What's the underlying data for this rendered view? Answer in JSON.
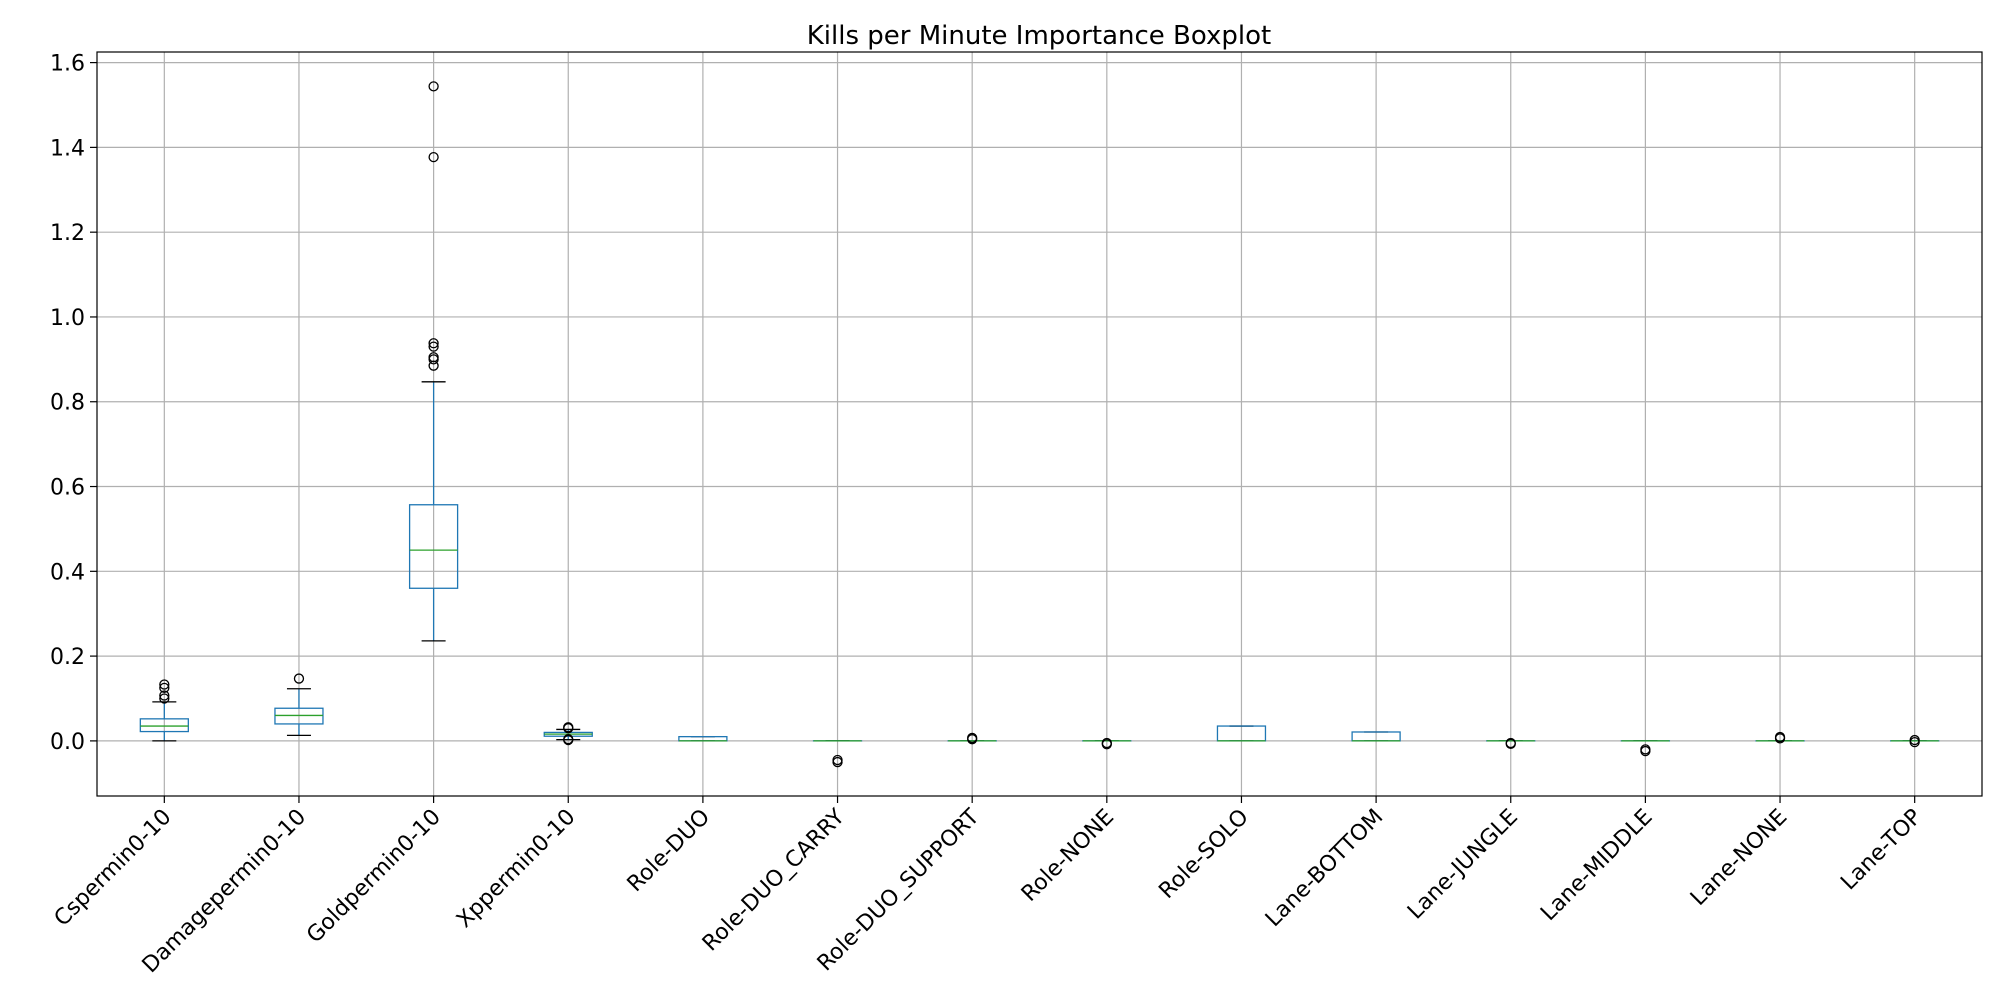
{
  "chart_data": {
    "type": "boxplot",
    "title": "Kills per Minute Importance Boxplot",
    "xlabel": "",
    "ylabel": "",
    "ylim": [
      -0.13,
      1.625
    ],
    "yticks": [
      "0.0",
      "0.2",
      "0.4",
      "0.6",
      "0.8",
      "1.0",
      "1.2",
      "1.4",
      "1.6"
    ],
    "grid": true,
    "colors": {
      "box": "#1f77b4",
      "median": "#2ca02c",
      "whisker_cap": "#000000",
      "grid": "#b0b0b0",
      "flier": "#000000"
    },
    "categories": [
      "Cspermin0-10",
      "Damagepermin0-10",
      "Goldpermin0-10",
      "Xppermin0-10",
      "Role-DUO",
      "Role-DUO_CARRY",
      "Role-DUO_SUPPORT",
      "Role-NONE",
      "Role-SOLO",
      "Lane-BOTTOM",
      "Lane-JUNGLE",
      "Lane-MIDDLE",
      "Lane-NONE",
      "Lane-TOP"
    ],
    "boxes": [
      {
        "label": "Cspermin0-10",
        "whislo": 0.0,
        "q1": 0.022,
        "med": 0.035,
        "q3": 0.052,
        "whishi": 0.092,
        "fliers": [
          0.1,
          0.107,
          0.125,
          0.133
        ]
      },
      {
        "label": "Damagepermin0-10",
        "whislo": 0.013,
        "q1": 0.04,
        "med": 0.06,
        "q3": 0.077,
        "whishi": 0.123,
        "fliers": [
          0.147
        ]
      },
      {
        "label": "Goldpermin0-10",
        "whislo": 0.236,
        "q1": 0.36,
        "med": 0.45,
        "q3": 0.557,
        "whishi": 0.847,
        "fliers": [
          0.885,
          0.9,
          0.905,
          0.93,
          0.938,
          1.377,
          1.544
        ]
      },
      {
        "label": "Xppermin0-10",
        "whislo": 0.003,
        "q1": 0.011,
        "med": 0.016,
        "q3": 0.02,
        "whishi": 0.027,
        "fliers": [
          0.002,
          0.004,
          0.03,
          0.032
        ]
      },
      {
        "label": "Role-DUO",
        "whislo": 0.0,
        "q1": 0.0,
        "med": 0.0,
        "q3": 0.01,
        "whishi": 0.01,
        "fliers": []
      },
      {
        "label": "Role-DUO_CARRY",
        "whislo": 0.0,
        "q1": 0.0,
        "med": 0.0,
        "q3": 0.0,
        "whishi": 0.0,
        "fliers": [
          -0.045,
          -0.05
        ]
      },
      {
        "label": "Role-DUO_SUPPORT",
        "whislo": 0.0,
        "q1": 0.0,
        "med": 0.0,
        "q3": 0.0,
        "whishi": 0.0,
        "fliers": [
          0.004,
          0.007
        ]
      },
      {
        "label": "Role-NONE",
        "whislo": 0.0,
        "q1": 0.0,
        "med": 0.0,
        "q3": 0.0,
        "whishi": 0.0,
        "fliers": [
          -0.005,
          -0.008
        ]
      },
      {
        "label": "Role-SOLO",
        "whislo": 0.0,
        "q1": 0.0,
        "med": 0.0,
        "q3": 0.035,
        "whishi": 0.035,
        "fliers": []
      },
      {
        "label": "Lane-BOTTOM",
        "whislo": 0.0,
        "q1": 0.0,
        "med": 0.0,
        "q3": 0.021,
        "whishi": 0.021,
        "fliers": []
      },
      {
        "label": "Lane-JUNGLE",
        "whislo": 0.0,
        "q1": 0.0,
        "med": 0.0,
        "q3": 0.0,
        "whishi": 0.0,
        "fliers": [
          -0.005,
          -0.007
        ]
      },
      {
        "label": "Lane-MIDDLE",
        "whislo": 0.0,
        "q1": 0.0,
        "med": 0.0,
        "q3": 0.0,
        "whishi": 0.0,
        "fliers": [
          -0.02,
          -0.024
        ]
      },
      {
        "label": "Lane-NONE",
        "whislo": 0.0,
        "q1": 0.0,
        "med": 0.0,
        "q3": 0.0,
        "whishi": 0.0,
        "fliers": [
          0.006,
          0.009
        ]
      },
      {
        "label": "Lane-TOP",
        "whislo": 0.0,
        "q1": 0.0,
        "med": 0.0,
        "q3": 0.0,
        "whishi": 0.0,
        "fliers": [
          -0.003,
          0.002
        ]
      }
    ]
  }
}
